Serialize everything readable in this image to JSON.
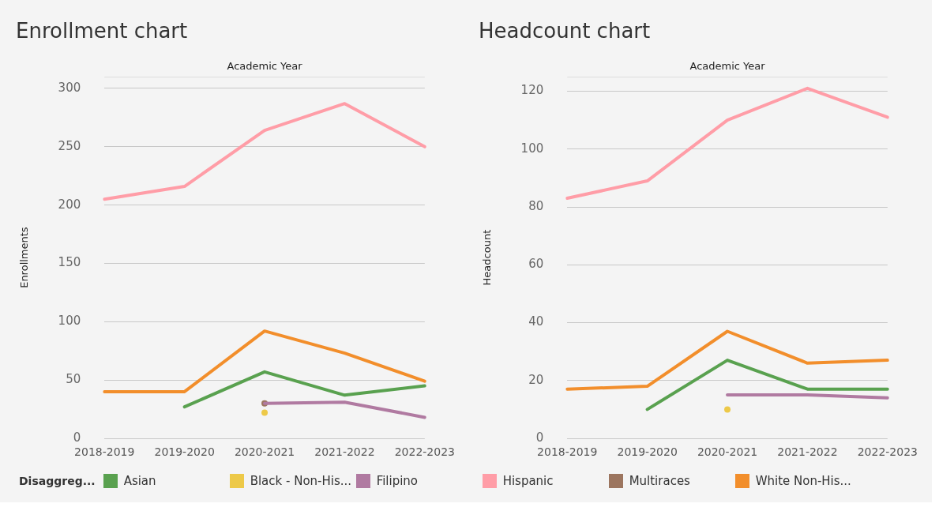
{
  "chart_data": [
    {
      "type": "line",
      "title": "Enrollment chart",
      "xlabel": "Academic Year",
      "ylabel": "Enrollments",
      "legend_title": "Disaggreg...",
      "legend": "bottom",
      "grid": "y",
      "categories": [
        "2018-2019",
        "2019-2020",
        "2020-2021",
        "2021-2022",
        "2022-2023"
      ],
      "ylim": [
        0,
        310
      ],
      "yticks": [
        0,
        50,
        100,
        150,
        200,
        250,
        300
      ],
      "series": [
        {
          "name": "Asian",
          "color": "#59a14f",
          "values": [
            null,
            27,
            57,
            37,
            45
          ]
        },
        {
          "name": "Black - Non-His...",
          "color": "#edc948",
          "marker": "circle",
          "values": [
            null,
            null,
            22,
            null,
            null
          ]
        },
        {
          "name": "Filipino",
          "color": "#b07aa1",
          "values": [
            null,
            null,
            30,
            31,
            18
          ]
        },
        {
          "name": "Hispanic",
          "color": "#ff9da7",
          "values": [
            205,
            216,
            264,
            287,
            250
          ]
        },
        {
          "name": "Multiraces",
          "color": "#9c755f",
          "marker": "circle",
          "values": [
            null,
            null,
            30,
            null,
            null
          ]
        },
        {
          "name": "White Non-His...",
          "color": "#f28e2b",
          "values": [
            40,
            40,
            92,
            73,
            49
          ]
        }
      ]
    },
    {
      "type": "line",
      "title": "Headcount chart",
      "xlabel": "Academic Year",
      "ylabel": "Headcount",
      "grid": "y",
      "categories": [
        "2018-2019",
        "2019-2020",
        "2020-2021",
        "2021-2022",
        "2022-2023"
      ],
      "ylim": [
        0,
        125
      ],
      "yticks": [
        0,
        20,
        40,
        60,
        80,
        100,
        120
      ],
      "series": [
        {
          "color": "#59a14f",
          "values": [
            null,
            10,
            27,
            17,
            17
          ]
        },
        {
          "color": "#edc948",
          "marker": "circle",
          "values": [
            null,
            null,
            10,
            null,
            null
          ]
        },
        {
          "color": "#b07aa1",
          "values": [
            null,
            null,
            15,
            15,
            14
          ]
        },
        {
          "color": "#ff9da7",
          "values": [
            83,
            89,
            110,
            121,
            111
          ]
        },
        {
          "color": "#f28e2b",
          "values": [
            17,
            18,
            37,
            26,
            27
          ]
        }
      ]
    }
  ]
}
